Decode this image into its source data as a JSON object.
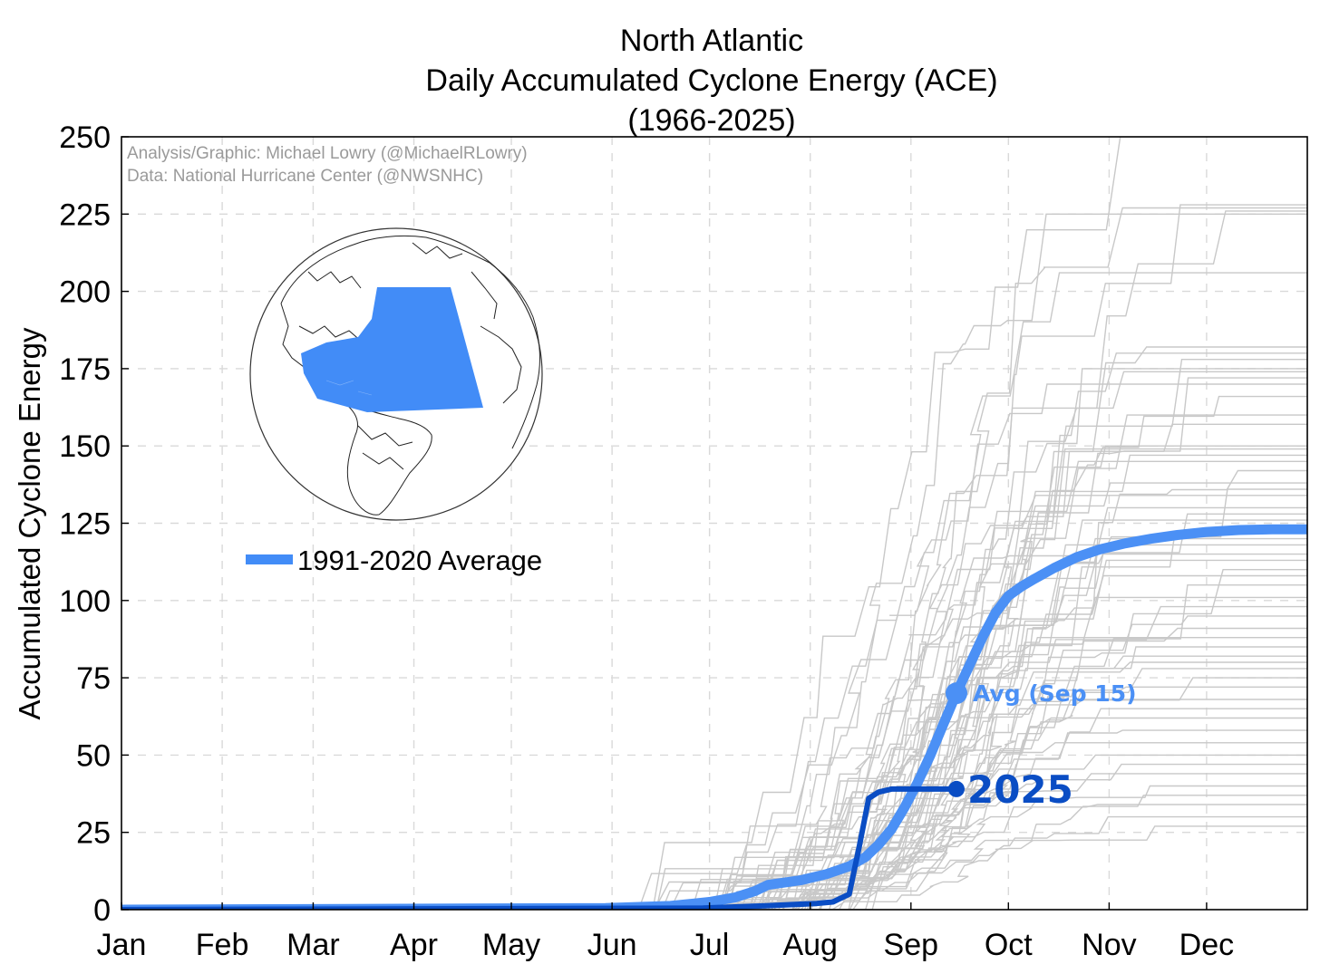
{
  "chart_data": {
    "type": "line",
    "title": [
      "North Atlantic",
      "Daily Accumulated Cyclone Energy (ACE)",
      "(1966-2025)"
    ],
    "ylabel": "Accumulated Cyclone Energy",
    "xlabel": "",
    "credits": [
      "Analysis/Graphic: Michael Lowry (@MichaelRLowry)",
      "Data: National Hurricane Center (@NWSNHC)"
    ],
    "xlim": [
      1,
      366
    ],
    "ylim": [
      0,
      250
    ],
    "yticks": [
      0,
      25,
      50,
      75,
      100,
      125,
      150,
      175,
      200,
      225,
      250
    ],
    "xticks": [
      {
        "label": "Jan",
        "day": 1
      },
      {
        "label": "Feb",
        "day": 32
      },
      {
        "label": "Mar",
        "day": 60
      },
      {
        "label": "Apr",
        "day": 91
      },
      {
        "label": "May",
        "day": 121
      },
      {
        "label": "Jun",
        "day": 152
      },
      {
        "label": "Jul",
        "day": 182
      },
      {
        "label": "Aug",
        "day": 213
      },
      {
        "label": "Sep",
        "day": 244
      },
      {
        "label": "Oct",
        "day": 274
      },
      {
        "label": "Nov",
        "day": 305
      },
      {
        "label": "Dec",
        "day": 335
      }
    ],
    "grid": true,
    "legend": {
      "label": "1991-2020 Average",
      "placement": "middle-left"
    },
    "inset": "Orthographic globe map with the North Atlantic basin shaded blue",
    "series": [
      {
        "name": "1991-2020 Average",
        "color": "#4b90f5",
        "x": [
          1,
          150,
          170,
          182,
          190,
          196,
          200,
          210,
          218,
          225,
          230,
          234,
          238,
          242,
          246,
          250,
          254,
          258,
          262,
          266,
          270,
          274,
          278,
          282,
          288,
          295,
          302,
          310,
          318,
          326,
          335,
          345,
          355,
          366
        ],
        "y": [
          0,
          0.5,
          1.2,
          2.5,
          4,
          6,
          8,
          9.5,
          11.5,
          14,
          17,
          21,
          26,
          33,
          41,
          50,
          60,
          70,
          79,
          88,
          96,
          101.5,
          104.5,
          107,
          110.5,
          114,
          116.5,
          118.5,
          120,
          121.2,
          122.2,
          122.8,
          123,
          123
        ]
      },
      {
        "name": "2025",
        "color": "#0a4dc4",
        "x": [
          1,
          180,
          200,
          215,
          220,
          225,
          228,
          231,
          234,
          238,
          244,
          250,
          255,
          258
        ],
        "y": [
          0,
          0.5,
          1.3,
          2.0,
          2.5,
          5,
          20,
          36,
          38,
          39,
          39,
          39,
          39,
          39
        ]
      }
    ],
    "annotations": [
      {
        "text": "Avg (Sep 15)",
        "x": 258,
        "y": 70,
        "color": "#4b90f5"
      },
      {
        "text": "2025",
        "x": 258,
        "y": 39,
        "color": "#0a4dc4"
      }
    ],
    "historical_final_ace": [
      250,
      228,
      227,
      226,
      225,
      206,
      182,
      180,
      178,
      175,
      174,
      172,
      170,
      166,
      160,
      157,
      150,
      149,
      147,
      145,
      142,
      138,
      136,
      134,
      130,
      128,
      126,
      122,
      120,
      118,
      115,
      113,
      110,
      108,
      105,
      101,
      98,
      95,
      91,
      88,
      85,
      82,
      80,
      78,
      75,
      72,
      68,
      65,
      62,
      58,
      54,
      50,
      47,
      44,
      40,
      37,
      34,
      30,
      27
    ]
  }
}
